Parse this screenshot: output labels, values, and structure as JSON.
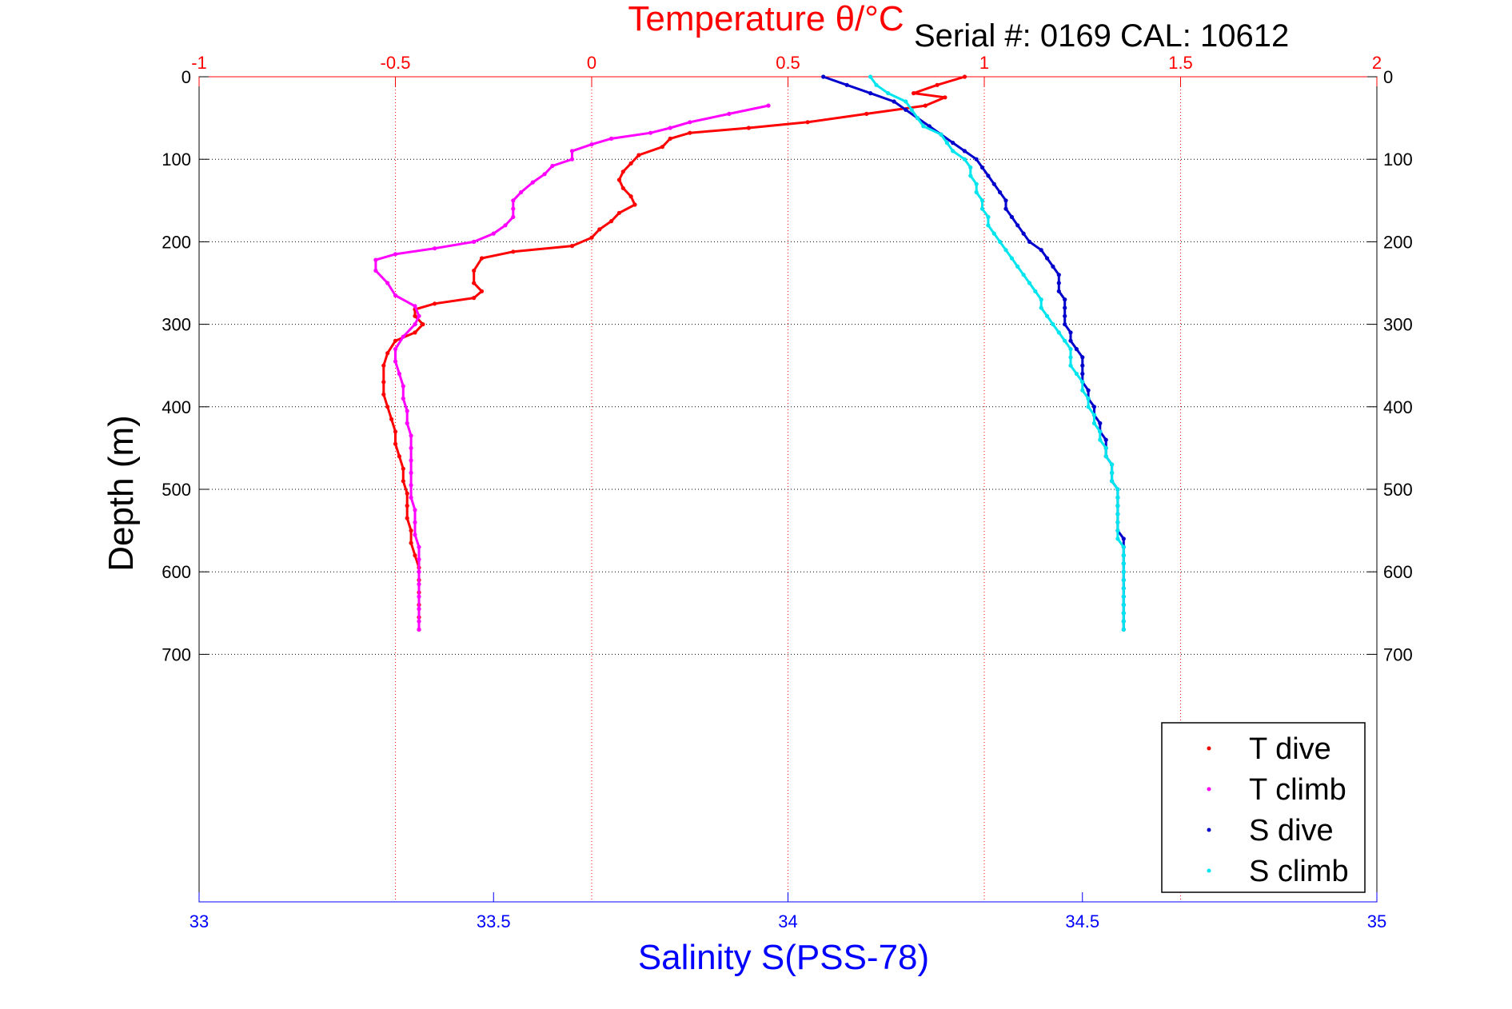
{
  "serial_label": "Serial #: 0169 CAL: 10612",
  "chart_data": {
    "type": "scatter",
    "title": "Temperature θ/°C",
    "xlabel": "Salinity S(PSS-78)",
    "ylabel": "Depth (m)",
    "grid": true,
    "legend_position": "bottom-right",
    "temperature_axis": {
      "label": "Temperature θ/°C",
      "range": [
        -1,
        2
      ],
      "ticks": [
        "-1",
        "-0.5",
        "0",
        "0.5",
        "1",
        "1.5",
        "2"
      ],
      "color": "#ff0000"
    },
    "salinity_axis": {
      "label": "Salinity S(PSS-78)",
      "range": [
        33,
        35
      ],
      "ticks": [
        "33",
        "33.5",
        "34",
        "34.5",
        "35"
      ],
      "color": "#0000ff"
    },
    "depth_axis": {
      "label": "Depth (m)",
      "range": [
        0,
        1000
      ],
      "ticks": [
        "0",
        "100",
        "200",
        "300",
        "400",
        "500",
        "600",
        "700"
      ],
      "reversed": true
    },
    "series": [
      {
        "name": "T dive",
        "axis": "temperature",
        "color": "#ff0000",
        "points": [
          [
            0.95,
            0
          ],
          [
            0.88,
            10
          ],
          [
            0.82,
            20
          ],
          [
            0.9,
            25
          ],
          [
            0.85,
            35
          ],
          [
            0.7,
            45
          ],
          [
            0.55,
            55
          ],
          [
            0.4,
            62
          ],
          [
            0.25,
            68
          ],
          [
            0.2,
            75
          ],
          [
            0.18,
            85
          ],
          [
            0.12,
            95
          ],
          [
            0.1,
            105
          ],
          [
            0.08,
            115
          ],
          [
            0.07,
            125
          ],
          [
            0.08,
            135
          ],
          [
            0.1,
            145
          ],
          [
            0.11,
            155
          ],
          [
            0.07,
            165
          ],
          [
            0.05,
            175
          ],
          [
            0.02,
            185
          ],
          [
            0.0,
            195
          ],
          [
            -0.05,
            205
          ],
          [
            -0.2,
            212
          ],
          [
            -0.28,
            220
          ],
          [
            -0.3,
            235
          ],
          [
            -0.3,
            250
          ],
          [
            -0.28,
            260
          ],
          [
            -0.3,
            268
          ],
          [
            -0.4,
            275
          ],
          [
            -0.45,
            282
          ],
          [
            -0.45,
            290
          ],
          [
            -0.43,
            300
          ],
          [
            -0.45,
            310
          ],
          [
            -0.5,
            320
          ],
          [
            -0.52,
            335
          ],
          [
            -0.53,
            350
          ],
          [
            -0.53,
            370
          ],
          [
            -0.53,
            385
          ],
          [
            -0.52,
            400
          ],
          [
            -0.51,
            415
          ],
          [
            -0.5,
            430
          ],
          [
            -0.5,
            445
          ],
          [
            -0.49,
            460
          ],
          [
            -0.48,
            475
          ],
          [
            -0.48,
            490
          ],
          [
            -0.47,
            505
          ],
          [
            -0.47,
            520
          ],
          [
            -0.47,
            535
          ],
          [
            -0.46,
            550
          ],
          [
            -0.46,
            565
          ],
          [
            -0.45,
            580
          ],
          [
            -0.44,
            595
          ],
          [
            -0.44,
            610
          ],
          [
            -0.44,
            625
          ],
          [
            -0.44,
            640
          ],
          [
            -0.44,
            655
          ],
          [
            -0.44,
            670
          ]
        ]
      },
      {
        "name": "T climb",
        "axis": "temperature",
        "color": "#ff00ff",
        "points": [
          [
            0.45,
            35
          ],
          [
            0.35,
            45
          ],
          [
            0.25,
            55
          ],
          [
            0.2,
            62
          ],
          [
            0.15,
            68
          ],
          [
            0.05,
            75
          ],
          [
            0.0,
            82
          ],
          [
            -0.05,
            90
          ],
          [
            -0.05,
            100
          ],
          [
            -0.1,
            108
          ],
          [
            -0.12,
            118
          ],
          [
            -0.15,
            128
          ],
          [
            -0.18,
            140
          ],
          [
            -0.2,
            150
          ],
          [
            -0.2,
            160
          ],
          [
            -0.2,
            170
          ],
          [
            -0.22,
            180
          ],
          [
            -0.25,
            190
          ],
          [
            -0.3,
            200
          ],
          [
            -0.4,
            208
          ],
          [
            -0.5,
            215
          ],
          [
            -0.55,
            222
          ],
          [
            -0.55,
            235
          ],
          [
            -0.52,
            250
          ],
          [
            -0.5,
            265
          ],
          [
            -0.45,
            278
          ],
          [
            -0.44,
            290
          ],
          [
            -0.45,
            300
          ],
          [
            -0.48,
            315
          ],
          [
            -0.5,
            330
          ],
          [
            -0.5,
            345
          ],
          [
            -0.49,
            360
          ],
          [
            -0.48,
            375
          ],
          [
            -0.48,
            390
          ],
          [
            -0.47,
            405
          ],
          [
            -0.47,
            420
          ],
          [
            -0.46,
            435
          ],
          [
            -0.46,
            450
          ],
          [
            -0.46,
            465
          ],
          [
            -0.46,
            480
          ],
          [
            -0.46,
            495
          ],
          [
            -0.46,
            510
          ],
          [
            -0.45,
            525
          ],
          [
            -0.45,
            540
          ],
          [
            -0.45,
            555
          ],
          [
            -0.44,
            570
          ],
          [
            -0.44,
            585
          ],
          [
            -0.44,
            600
          ],
          [
            -0.44,
            615
          ],
          [
            -0.44,
            630
          ],
          [
            -0.44,
            645
          ],
          [
            -0.44,
            660
          ],
          [
            -0.44,
            670
          ]
        ]
      },
      {
        "name": "S dive",
        "axis": "salinity",
        "color": "#0000cd",
        "points": [
          [
            34.06,
            0
          ],
          [
            34.1,
            10
          ],
          [
            34.14,
            20
          ],
          [
            34.18,
            30
          ],
          [
            34.2,
            40
          ],
          [
            34.22,
            50
          ],
          [
            34.24,
            60
          ],
          [
            34.26,
            70
          ],
          [
            34.28,
            80
          ],
          [
            34.3,
            90
          ],
          [
            34.32,
            100
          ],
          [
            34.33,
            110
          ],
          [
            34.34,
            120
          ],
          [
            34.35,
            130
          ],
          [
            34.36,
            140
          ],
          [
            34.37,
            150
          ],
          [
            34.37,
            160
          ],
          [
            34.38,
            170
          ],
          [
            34.39,
            180
          ],
          [
            34.4,
            190
          ],
          [
            34.41,
            200
          ],
          [
            34.43,
            210
          ],
          [
            34.44,
            220
          ],
          [
            34.45,
            230
          ],
          [
            34.46,
            240
          ],
          [
            34.46,
            250
          ],
          [
            34.46,
            260
          ],
          [
            34.47,
            270
          ],
          [
            34.47,
            280
          ],
          [
            34.47,
            290
          ],
          [
            34.47,
            300
          ],
          [
            34.48,
            310
          ],
          [
            34.48,
            320
          ],
          [
            34.49,
            330
          ],
          [
            34.5,
            340
          ],
          [
            34.5,
            350
          ],
          [
            34.5,
            360
          ],
          [
            34.5,
            370
          ],
          [
            34.51,
            380
          ],
          [
            34.51,
            390
          ],
          [
            34.52,
            400
          ],
          [
            34.52,
            410
          ],
          [
            34.53,
            420
          ],
          [
            34.53,
            430
          ],
          [
            34.54,
            440
          ],
          [
            34.54,
            450
          ],
          [
            34.54,
            460
          ],
          [
            34.55,
            470
          ],
          [
            34.55,
            480
          ],
          [
            34.55,
            490
          ],
          [
            34.56,
            500
          ],
          [
            34.56,
            510
          ],
          [
            34.56,
            520
          ],
          [
            34.56,
            530
          ],
          [
            34.56,
            540
          ],
          [
            34.56,
            550
          ],
          [
            34.57,
            560
          ],
          [
            34.57,
            570
          ],
          [
            34.57,
            580
          ],
          [
            34.57,
            590
          ],
          [
            34.57,
            600
          ],
          [
            34.57,
            610
          ],
          [
            34.57,
            620
          ],
          [
            34.57,
            630
          ],
          [
            34.57,
            640
          ],
          [
            34.57,
            650
          ],
          [
            34.57,
            660
          ],
          [
            34.57,
            670
          ]
        ]
      },
      {
        "name": "S climb",
        "axis": "salinity",
        "color": "#00e5ee",
        "points": [
          [
            34.14,
            0
          ],
          [
            34.15,
            10
          ],
          [
            34.17,
            20
          ],
          [
            34.2,
            30
          ],
          [
            34.21,
            40
          ],
          [
            34.22,
            50
          ],
          [
            34.23,
            60
          ],
          [
            34.26,
            70
          ],
          [
            34.27,
            80
          ],
          [
            34.28,
            90
          ],
          [
            34.3,
            100
          ],
          [
            34.31,
            110
          ],
          [
            34.31,
            120
          ],
          [
            34.32,
            130
          ],
          [
            34.32,
            140
          ],
          [
            34.33,
            150
          ],
          [
            34.33,
            160
          ],
          [
            34.34,
            170
          ],
          [
            34.34,
            180
          ],
          [
            34.35,
            190
          ],
          [
            34.36,
            200
          ],
          [
            34.37,
            210
          ],
          [
            34.38,
            220
          ],
          [
            34.39,
            230
          ],
          [
            34.4,
            240
          ],
          [
            34.41,
            250
          ],
          [
            34.42,
            260
          ],
          [
            34.43,
            270
          ],
          [
            34.43,
            280
          ],
          [
            34.44,
            290
          ],
          [
            34.45,
            300
          ],
          [
            34.46,
            310
          ],
          [
            34.47,
            320
          ],
          [
            34.48,
            330
          ],
          [
            34.48,
            340
          ],
          [
            34.48,
            350
          ],
          [
            34.49,
            360
          ],
          [
            34.5,
            370
          ],
          [
            34.5,
            380
          ],
          [
            34.51,
            390
          ],
          [
            34.51,
            400
          ],
          [
            34.52,
            410
          ],
          [
            34.52,
            420
          ],
          [
            34.53,
            430
          ],
          [
            34.53,
            440
          ],
          [
            34.54,
            450
          ],
          [
            34.54,
            460
          ],
          [
            34.55,
            470
          ],
          [
            34.55,
            480
          ],
          [
            34.55,
            490
          ],
          [
            34.56,
            500
          ],
          [
            34.56,
            510
          ],
          [
            34.56,
            520
          ],
          [
            34.56,
            530
          ],
          [
            34.56,
            540
          ],
          [
            34.56,
            550
          ],
          [
            34.56,
            560
          ],
          [
            34.57,
            570
          ],
          [
            34.57,
            580
          ],
          [
            34.57,
            590
          ],
          [
            34.57,
            600
          ],
          [
            34.57,
            610
          ],
          [
            34.57,
            620
          ],
          [
            34.57,
            630
          ],
          [
            34.57,
            640
          ],
          [
            34.57,
            650
          ],
          [
            34.57,
            660
          ],
          [
            34.57,
            670
          ]
        ]
      }
    ]
  }
}
